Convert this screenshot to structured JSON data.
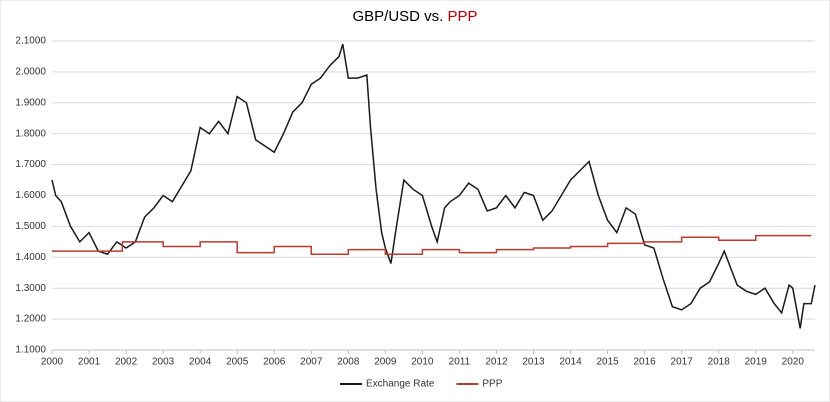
{
  "chart_data": {
    "type": "line",
    "title_parts": [
      {
        "text": "GBP/USD vs.",
        "color": "#000000"
      },
      {
        "text": "PPP",
        "color": "#c00000"
      }
    ],
    "xlim": [
      2000,
      2020.6
    ],
    "xticks": [
      2000,
      2001,
      2002,
      2003,
      2004,
      2005,
      2006,
      2007,
      2008,
      2009,
      2010,
      2011,
      2012,
      2013,
      2014,
      2015,
      2016,
      2017,
      2018,
      2019,
      2020
    ],
    "ylim": [
      1.1,
      2.1
    ],
    "yticks": [
      {
        "value": 1.1,
        "label": "1.1000"
      },
      {
        "value": 1.2,
        "label": "1.2000"
      },
      {
        "value": 1.3,
        "label": "1.3000"
      },
      {
        "value": 1.4,
        "label": "1.4000"
      },
      {
        "value": 1.5,
        "label": "1.5000"
      },
      {
        "value": 1.6,
        "label": "1.6000"
      },
      {
        "value": 1.7,
        "label": "1.7000"
      },
      {
        "value": 1.8,
        "label": "1.8000"
      },
      {
        "value": 1.9,
        "label": "1.9000"
      },
      {
        "value": 2.0,
        "label": "2.0000"
      },
      {
        "value": 2.1,
        "label": "2.1000"
      }
    ],
    "grid": true,
    "legend": "bottom",
    "series": [
      {
        "name": "Exchange Rate",
        "color": "#1a1a1a",
        "x": [
          2000.0,
          2000.1,
          2000.25,
          2000.5,
          2000.75,
          2001.0,
          2001.25,
          2001.5,
          2001.75,
          2002.0,
          2002.25,
          2002.5,
          2002.75,
          2003.0,
          2003.25,
          2003.5,
          2003.75,
          2004.0,
          2004.25,
          2004.5,
          2004.75,
          2005.0,
          2005.25,
          2005.5,
          2005.75,
          2006.0,
          2006.25,
          2006.5,
          2006.75,
          2007.0,
          2007.25,
          2007.5,
          2007.75,
          2007.85,
          2008.0,
          2008.25,
          2008.5,
          2008.6,
          2008.75,
          2008.9,
          2009.0,
          2009.15,
          2009.3,
          2009.5,
          2009.75,
          2010.0,
          2010.25,
          2010.4,
          2010.6,
          2010.75,
          2011.0,
          2011.25,
          2011.5,
          2011.75,
          2012.0,
          2012.25,
          2012.5,
          2012.75,
          2013.0,
          2013.25,
          2013.5,
          2013.75,
          2014.0,
          2014.25,
          2014.5,
          2014.75,
          2015.0,
          2015.25,
          2015.5,
          2015.75,
          2016.0,
          2016.25,
          2016.5,
          2016.75,
          2017.0,
          2017.25,
          2017.5,
          2017.75,
          2018.0,
          2018.15,
          2018.5,
          2018.75,
          2019.0,
          2019.25,
          2019.5,
          2019.7,
          2019.9,
          2020.0,
          2020.2,
          2020.3,
          2020.5,
          2020.6
        ],
        "values": [
          1.65,
          1.6,
          1.58,
          1.5,
          1.45,
          1.48,
          1.42,
          1.41,
          1.45,
          1.43,
          1.45,
          1.53,
          1.56,
          1.6,
          1.58,
          1.63,
          1.68,
          1.82,
          1.8,
          1.84,
          1.8,
          1.92,
          1.9,
          1.78,
          1.76,
          1.74,
          1.8,
          1.87,
          1.9,
          1.96,
          1.98,
          2.02,
          2.05,
          2.09,
          1.98,
          1.98,
          1.99,
          1.82,
          1.62,
          1.48,
          1.43,
          1.38,
          1.5,
          1.65,
          1.62,
          1.6,
          1.5,
          1.45,
          1.56,
          1.58,
          1.6,
          1.64,
          1.62,
          1.55,
          1.56,
          1.6,
          1.56,
          1.61,
          1.6,
          1.52,
          1.55,
          1.6,
          1.65,
          1.68,
          1.71,
          1.6,
          1.52,
          1.48,
          1.56,
          1.54,
          1.44,
          1.43,
          1.33,
          1.24,
          1.23,
          1.25,
          1.3,
          1.32,
          1.38,
          1.42,
          1.31,
          1.29,
          1.28,
          1.3,
          1.25,
          1.22,
          1.31,
          1.3,
          1.17,
          1.25,
          1.25,
          1.31
        ]
      },
      {
        "name": "PPP",
        "color": "#c0392b",
        "x": [
          2000.0,
          2001.9,
          2001.9,
          2003.0,
          2003.0,
          2004.0,
          2004.0,
          2005.0,
          2005.0,
          2006.0,
          2006.0,
          2007.0,
          2007.0,
          2008.0,
          2008.0,
          2009.0,
          2009.0,
          2010.0,
          2010.0,
          2011.0,
          2011.0,
          2012.0,
          2012.0,
          2013.0,
          2013.0,
          2014.0,
          2014.0,
          2015.0,
          2015.0,
          2016.0,
          2016.0,
          2017.0,
          2017.0,
          2018.0,
          2018.0,
          2019.0,
          2019.0,
          2020.5
        ],
        "values": [
          1.42,
          1.42,
          1.45,
          1.45,
          1.435,
          1.435,
          1.45,
          1.45,
          1.415,
          1.415,
          1.435,
          1.435,
          1.41,
          1.41,
          1.425,
          1.425,
          1.41,
          1.41,
          1.425,
          1.425,
          1.415,
          1.415,
          1.425,
          1.425,
          1.43,
          1.43,
          1.435,
          1.435,
          1.445,
          1.445,
          1.45,
          1.45,
          1.465,
          1.465,
          1.455,
          1.455,
          1.47,
          1.47
        ]
      }
    ]
  }
}
